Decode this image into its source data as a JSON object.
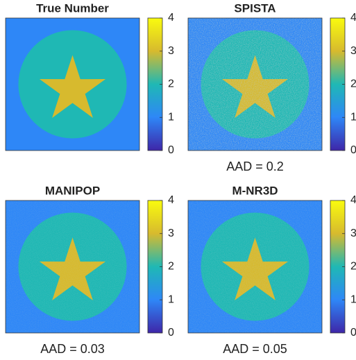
{
  "chart_data": [
    {
      "type": "image",
      "title": "True Number",
      "background_value": 1,
      "disk_value": 2,
      "star_value": 3,
      "noise": 0,
      "clim": [
        0,
        4
      ],
      "cticks": [
        0,
        1,
        2,
        3,
        4
      ],
      "colormap": [
        "#3e26a8",
        "#2e87f7",
        "#1fb8b4",
        "#d7ba2e",
        "#f9fb0e"
      ]
    },
    {
      "type": "image",
      "title": "SPISTA",
      "background_value": 1,
      "disk_value": 2,
      "star_value": 3,
      "noise": 0.5,
      "annotation": "AAD = 0.2",
      "clim": [
        0,
        4
      ],
      "cticks": [
        0,
        1,
        2,
        3,
        4
      ],
      "colormap": [
        "#3e26a8",
        "#2e87f7",
        "#1fb8b4",
        "#d7ba2e",
        "#f9fb0e"
      ]
    },
    {
      "type": "image",
      "title": "MANIPOP",
      "background_value": 1,
      "disk_value": 2,
      "star_value": 3,
      "noise": 0.15,
      "annotation": "AAD = 0.03",
      "clim": [
        0,
        4
      ],
      "cticks": [
        0,
        1,
        2,
        3,
        4
      ],
      "colormap": [
        "#3e26a8",
        "#2e87f7",
        "#1fb8b4",
        "#d7ba2e",
        "#f9fb0e"
      ]
    },
    {
      "type": "image",
      "title": "M-NR3D",
      "background_value": 1,
      "disk_value": 2,
      "star_value": 3,
      "noise": 0.2,
      "annotation": "AAD = 0.05",
      "clim": [
        0,
        4
      ],
      "cticks": [
        0,
        1,
        2,
        3,
        4
      ],
      "colormap": [
        "#3e26a8",
        "#2e87f7",
        "#1fb8b4",
        "#d7ba2e",
        "#f9fb0e"
      ]
    }
  ]
}
